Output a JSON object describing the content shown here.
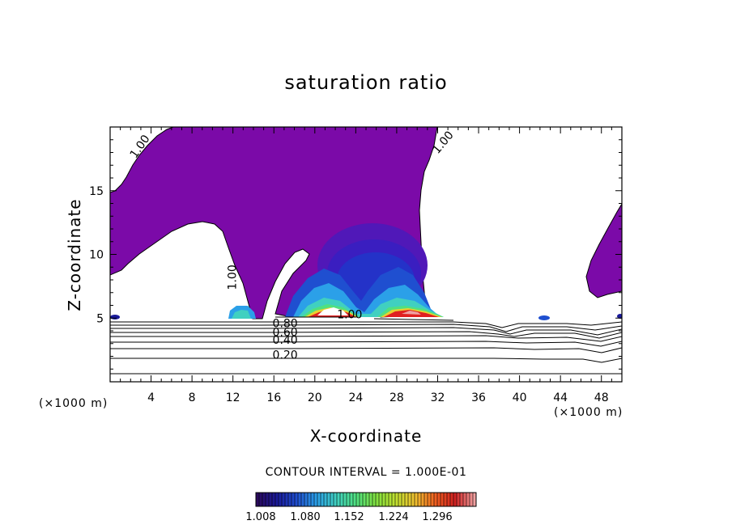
{
  "chart_data": {
    "type": "contour",
    "title": "saturation ratio",
    "xlabel": "X-coordinate",
    "ylabel": "Z-coordinate",
    "x_unit_left": "(×1000 m)",
    "x_unit_right": "(×1000 m)",
    "xlim": [
      0,
      50
    ],
    "ylim": [
      0,
      20
    ],
    "x_ticks": [
      4,
      8,
      12,
      16,
      20,
      24,
      28,
      32,
      36,
      40,
      44,
      48
    ],
    "y_ticks": [
      5,
      10,
      15
    ],
    "contour_interval_label": "CONTOUR INTERVAL = 1.000E-01",
    "line_contour_labels": [
      {
        "text": "1.00",
        "x": 3.2,
        "z": 18.3,
        "angle": -55
      },
      {
        "text": "1.00",
        "x": 32.8,
        "z": 18.6,
        "angle": -50
      },
      {
        "text": "1.00",
        "x": 12.3,
        "z": 8.2,
        "angle": -90
      },
      {
        "text": "1.00",
        "x": 23.4,
        "z": 5.0,
        "angle": 0
      },
      {
        "text": "0.80",
        "x": 17.1,
        "z": 4.3,
        "angle": 0
      },
      {
        "text": "0.60",
        "x": 17.1,
        "z": 3.6,
        "angle": 0
      },
      {
        "text": "0.40",
        "x": 17.1,
        "z": 3.0,
        "angle": 0
      },
      {
        "text": "0.20",
        "x": 17.1,
        "z": 1.8,
        "angle": 0
      }
    ],
    "colorbar": {
      "tick_labels": [
        "1.008",
        "1.080",
        "1.152",
        "1.224",
        "1.296"
      ],
      "colors": [
        "#2a0a5e",
        "#1a1a9a",
        "#1f4fd0",
        "#2ba0e8",
        "#40d0c0",
        "#50e080",
        "#80e040",
        "#c0e030",
        "#f0c030",
        "#f06020",
        "#d02020",
        "#f0a0a0"
      ]
    },
    "fill_colors": {
      "base": "#7b0aa8",
      "deep_blue": "#1a1a9a",
      "blue": "#1f4fd0",
      "cyan": "#30c8e0",
      "green": "#50d060",
      "yellow": "#e8d030",
      "orange": "#f07020",
      "red": "#e02020",
      "white": "#ffffff"
    }
  }
}
